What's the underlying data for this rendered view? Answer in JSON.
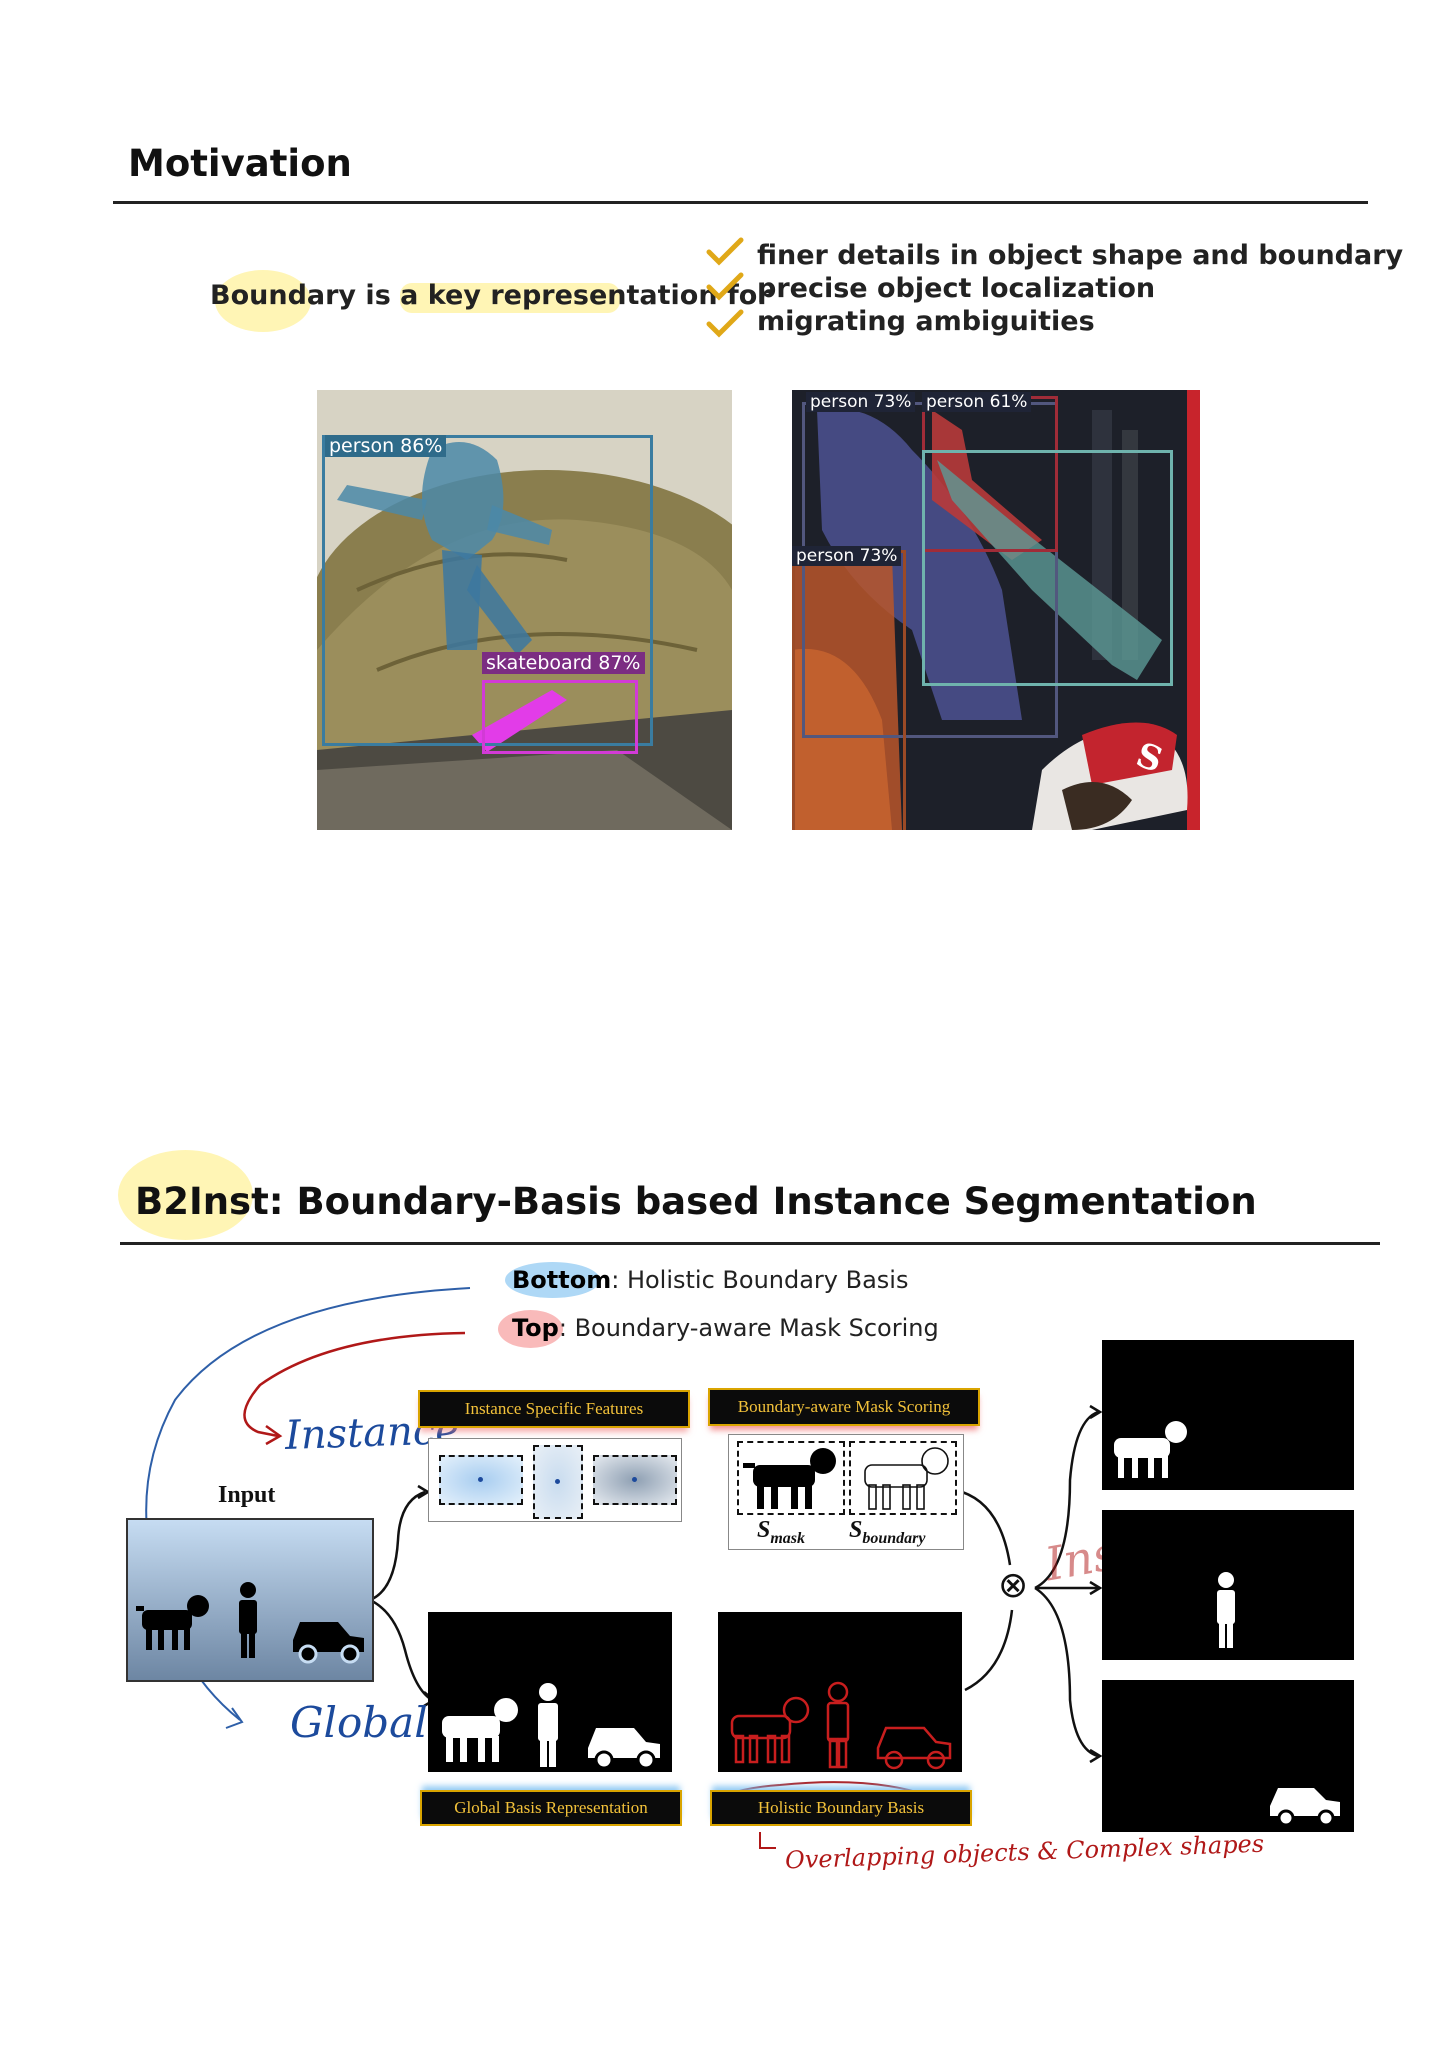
{
  "motivation": {
    "title": "Motivation",
    "statement": "Boundary is a key representation for",
    "benefits": [
      "finer details in object shape and boundary",
      "precise object localization",
      "migrating ambiguities"
    ],
    "left_image_labels": [
      "person 86%",
      "skateboard 87%"
    ],
    "right_image_labels": [
      "person 73%",
      "person 61%",
      "person 73%"
    ],
    "jersey_letter": "S"
  },
  "b2inst": {
    "title": "B2Inst: Boundary-Basis based Instance Segmentation",
    "legend": [
      {
        "key": "Bottom",
        "text": ": Holistic Boundary Basis"
      },
      {
        "key": "Top",
        "text": ": Boundary-aware Mask Scoring"
      }
    ],
    "diagram": {
      "input_label": "Input",
      "instance_features_label": "Instance Specific Features",
      "mask_scoring_label": "Boundary-aware Mask Scoring",
      "global_basis_label": "Global Basis Representation",
      "holistic_basis_label": "Holistic Boundary Basis",
      "score_mask": "S",
      "score_mask_sub": "mask",
      "score_boundary": "S",
      "score_boundary_sub": "boundary",
      "operator": "⊗"
    },
    "annotations": {
      "instance": "Instance",
      "global": "Global",
      "overlap": "Overlapping objects & Complex shapes",
      "inst_scribble": "Inst"
    }
  }
}
